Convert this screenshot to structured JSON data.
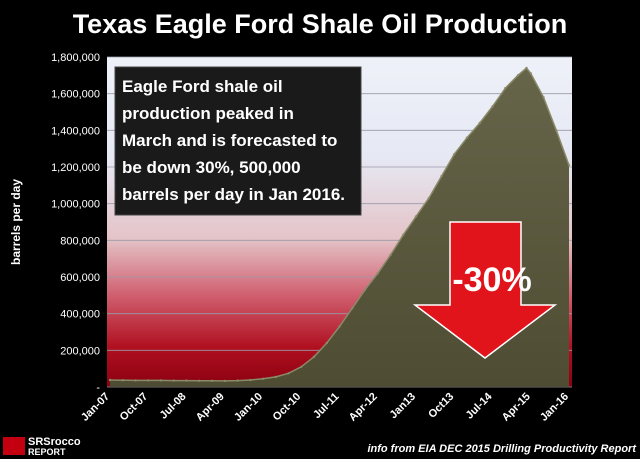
{
  "chart_data": {
    "type": "area",
    "title": "Texas Eagle Ford Shale Oil Production",
    "ylabel": "barrels per day",
    "ylim": [
      0,
      1800000
    ],
    "yticks": [
      "-",
      "200,000",
      "400,000",
      "600,000",
      "800,000",
      "1,000,000",
      "1,200,000",
      "1,400,000",
      "1,600,000",
      "1,800,000"
    ],
    "ytick_values": [
      0,
      200000,
      400000,
      600000,
      800000,
      1000000,
      1200000,
      1400000,
      1600000,
      1800000
    ],
    "xticks": [
      "Jan-07",
      "Oct-07",
      "Jul-08",
      "Apr-09",
      "Jan-10",
      "Oct-10",
      "Jul-11",
      "Apr-12",
      "Jan13",
      "Oct13",
      "Jul-14",
      "Apr-15",
      "Jan-16"
    ],
    "x": [
      "Jan-07",
      "Apr-07",
      "Jul-07",
      "Oct-07",
      "Jan-08",
      "Apr-08",
      "Jul-08",
      "Oct-08",
      "Jan-09",
      "Apr-09",
      "Jul-09",
      "Oct-09",
      "Jan-10",
      "Apr-10",
      "Jul-10",
      "Oct-10",
      "Jan-11",
      "Apr-11",
      "Jul-11",
      "Oct-11",
      "Jan-12",
      "Apr-12",
      "Jul-12",
      "Oct-12",
      "Jan-13",
      "Apr-13",
      "Jul-13",
      "Oct-13",
      "Jan-14",
      "Apr-14",
      "Jul-14",
      "Oct-14",
      "Jan-15",
      "Mar-15",
      "Apr-15",
      "Jul-15",
      "Oct-15",
      "Jan-16"
    ],
    "values": [
      38000,
      37000,
      36000,
      36000,
      36000,
      35000,
      35000,
      34000,
      34000,
      33000,
      35000,
      38000,
      45000,
      55000,
      75000,
      110000,
      165000,
      240000,
      330000,
      430000,
      530000,
      620000,
      720000,
      830000,
      930000,
      1030000,
      1150000,
      1270000,
      1360000,
      1440000,
      1530000,
      1630000,
      1700000,
      1740000,
      1710000,
      1580000,
      1400000,
      1210000
    ],
    "annotation": "Eagle Ford shale oil production peaked in March and is forecasted to be down 30%, 500,000 barrels per day in Jan 2016.",
    "annotation_lines": [
      "Eagle Ford shale oil",
      "production peaked in",
      "March and is forecasted to",
      "be down 30%, 500,000",
      "barrels per day in Jan 2016."
    ],
    "arrow_label": "-30%",
    "grid": true,
    "colors": {
      "background": "#000000",
      "area_fill": "#5c5a3c",
      "area_edge": "#8a8a68",
      "arrow": "#e0141a",
      "note_box": "#1a1a1a",
      "gradient_top": "#e8ecf6",
      "gradient_bottom": "#a00010"
    }
  },
  "footer": {
    "source": "info from EIA DEC 2015 Drilling Productivity Report",
    "logo_line1": "SRSrocco",
    "logo_line2": "REPORT"
  }
}
